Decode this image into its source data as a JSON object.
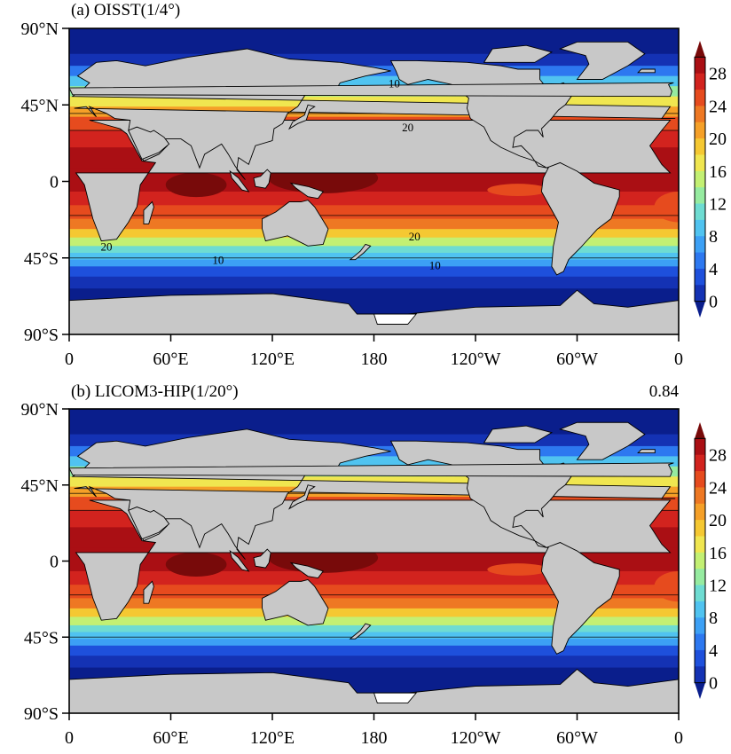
{
  "panels": [
    {
      "title": "(a) OISST(1/4°)",
      "corr": "",
      "contour_labels": [
        {
          "text": "10",
          "lon": -168,
          "lat": 58
        },
        {
          "text": "20",
          "lon": -160,
          "lat": 32
        },
        {
          "text": "20",
          "lon": 22,
          "lat": -38
        },
        {
          "text": "20",
          "lon": -156,
          "lat": -32
        },
        {
          "text": "10",
          "lon": 88,
          "lat": -46
        },
        {
          "text": "10",
          "lon": -144,
          "lat": -49
        }
      ]
    },
    {
      "title": "(b) LICOM3-HIP(1/20°)",
      "corr": "0.84",
      "contour_labels": []
    }
  ],
  "lat_ticks": [
    {
      "lat": 90,
      "label": "90°N"
    },
    {
      "lat": 45,
      "label": "45°N"
    },
    {
      "lat": 0,
      "label": "0"
    },
    {
      "lat": -45,
      "label": "45°S"
    },
    {
      "lat": -90,
      "label": "90°S"
    }
  ],
  "lon_ticks": [
    {
      "lon": 0,
      "label": "0"
    },
    {
      "lon": 60,
      "label": "60°E"
    },
    {
      "lon": 120,
      "label": "120°E"
    },
    {
      "lon": 180,
      "label": "180"
    },
    {
      "lon": 240,
      "label": "120°W"
    },
    {
      "lon": 300,
      "label": "60°W"
    },
    {
      "lon": 360,
      "label": "0"
    }
  ],
  "colorbar": {
    "unit_levels": [
      0,
      2,
      4,
      6,
      8,
      10,
      12,
      14,
      16,
      18,
      20,
      22,
      24,
      26,
      28,
      30
    ],
    "labels": [
      "28",
      "24",
      "20",
      "16",
      "12",
      "8",
      "4",
      "0"
    ],
    "colors": [
      "#0a1e8c",
      "#1432b4",
      "#1e50dc",
      "#2d78f0",
      "#3ca0f5",
      "#50c3f0",
      "#6edcd2",
      "#96eba0",
      "#c3f073",
      "#f0e650",
      "#f5c832",
      "#f5a028",
      "#ee7823",
      "#e64b1e",
      "#d2231e",
      "#aa0f14",
      "#780a0a"
    ]
  },
  "land_color": "#c8c8c8",
  "ice_color": "#ffffff"
}
